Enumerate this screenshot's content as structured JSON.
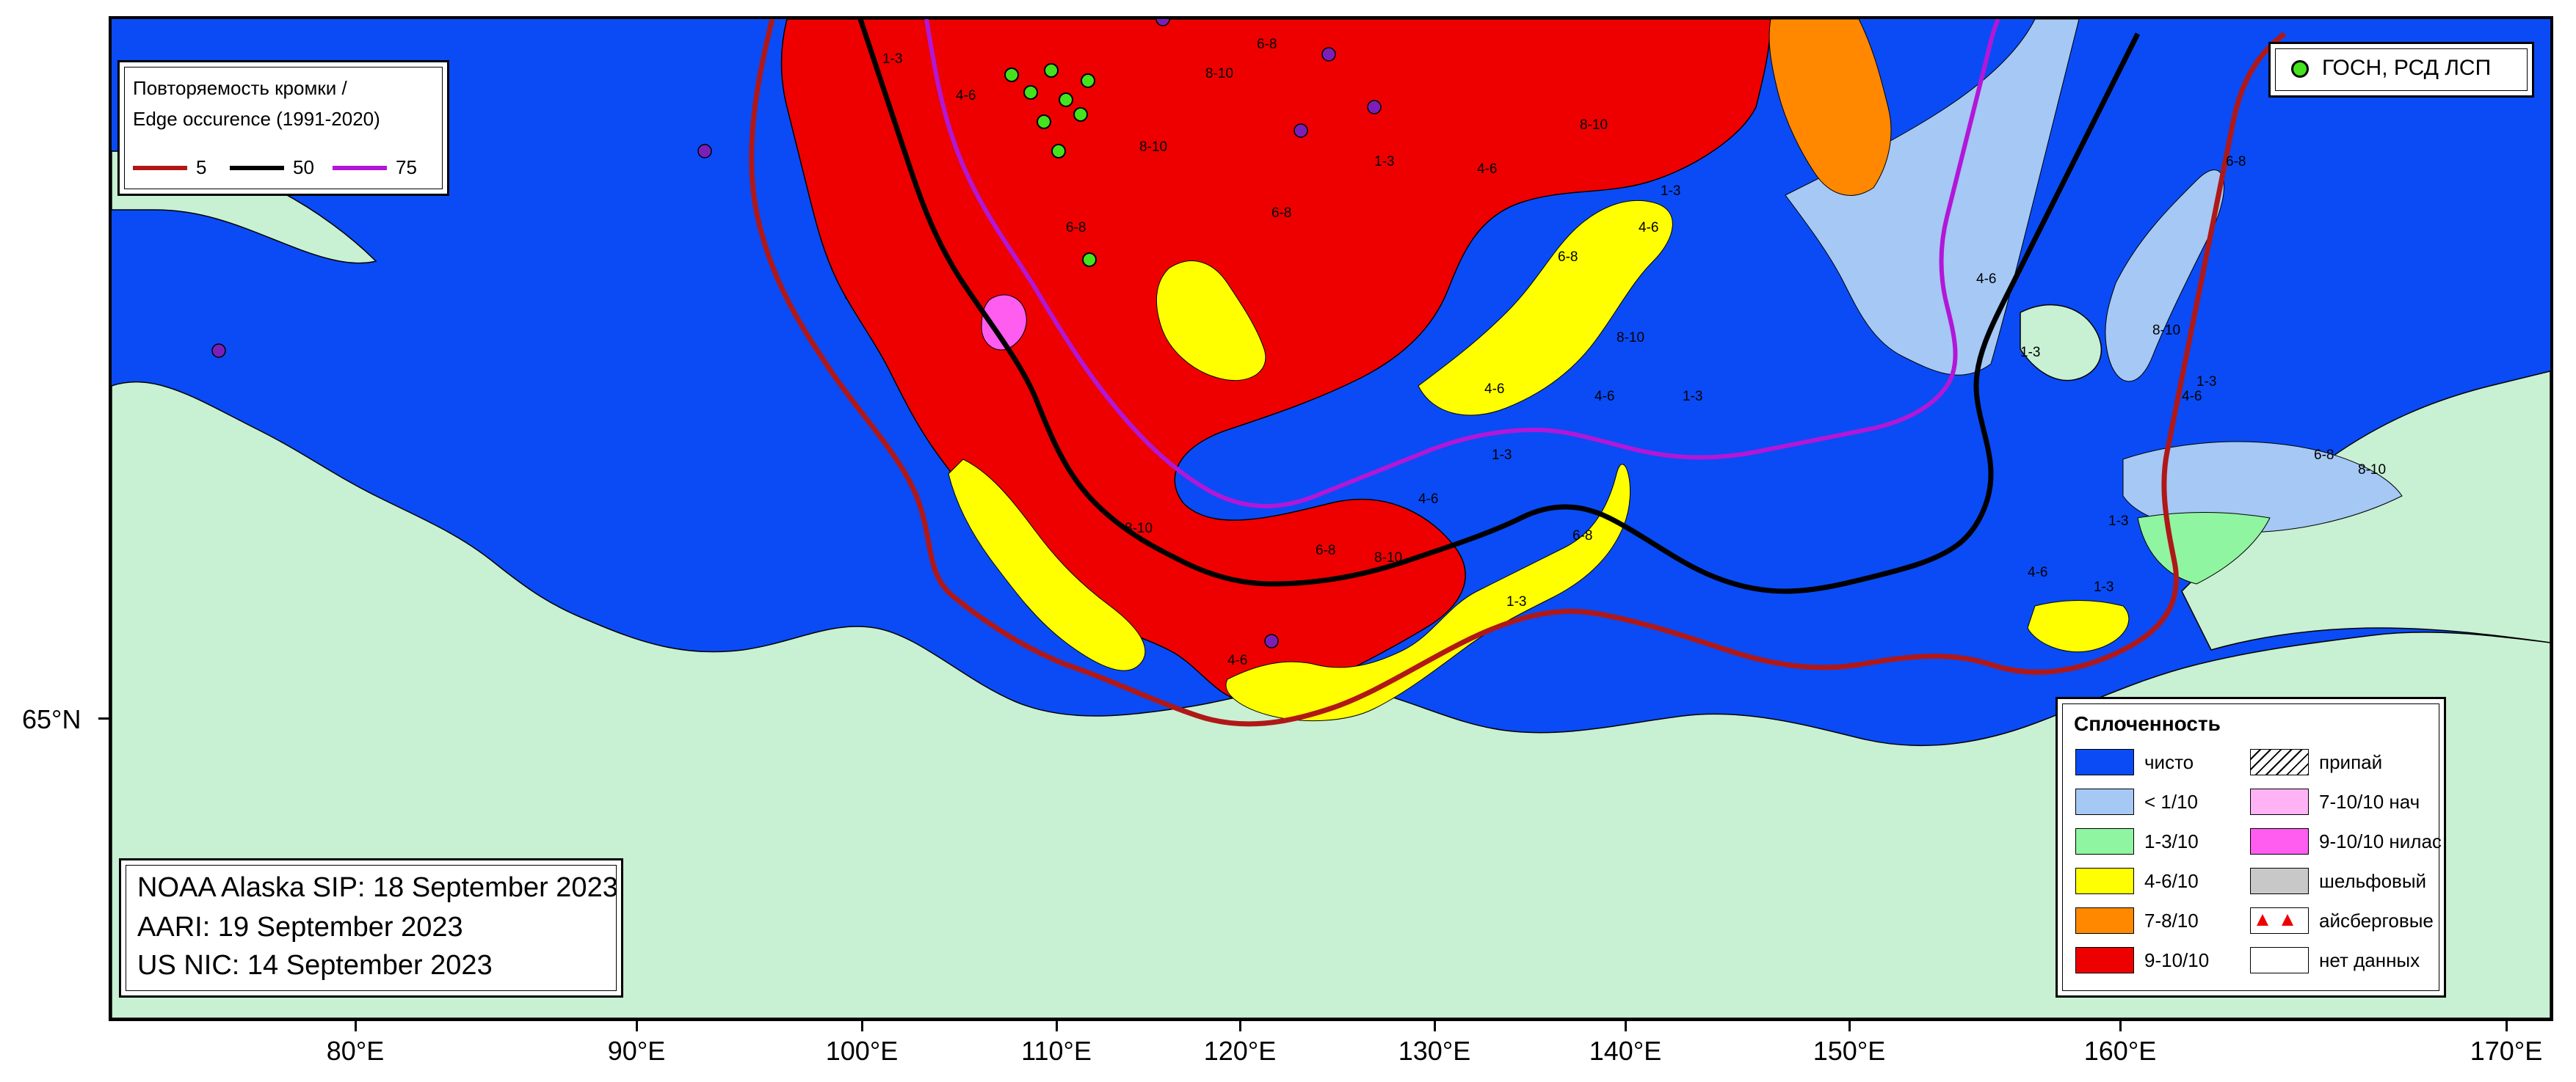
{
  "edge_legend": {
    "title_ru": "Повторяемость кромки /",
    "title_en": "Edge occurence (1991-2020)",
    "items": [
      {
        "label": "5",
        "color": "#b01818"
      },
      {
        "label": "50",
        "color": "#000000"
      },
      {
        "label": "75",
        "color": "#b217d8"
      }
    ]
  },
  "station_legend": {
    "label": "ГОСН, РСД ЛСП",
    "color": "#44e31e"
  },
  "concentration_legend": {
    "title": "Сплоченность",
    "left_items": [
      {
        "label": "чисто",
        "color": "#0a4bf5"
      },
      {
        "label": "< 1/10",
        "color": "#a5c8f5"
      },
      {
        "label": "1-3/10",
        "color": "#8ff5a0"
      },
      {
        "label": "4-6/10",
        "color": "#ffff00"
      },
      {
        "label": "7-8/10",
        "color": "#ff8800"
      },
      {
        "label": "9-10/10",
        "color": "#ee0000"
      }
    ],
    "right_items": [
      {
        "label": "припай",
        "swatch": "hatch"
      },
      {
        "label": "7-10/10 нач",
        "color": "#ffb3f5"
      },
      {
        "label": "9-10/10 нилас",
        "color": "#ff5cf0"
      },
      {
        "label": "шельфовый",
        "color": "#c8c8c8"
      },
      {
        "label": "айсберговые",
        "swatch": "triangles"
      },
      {
        "label": "нет данных",
        "color": "#ffffff"
      }
    ]
  },
  "sources": {
    "line1": "NOAA Alaska SIP: 18 September 2023",
    "line2": "AARI: 19 September 2023",
    "line3": "US NIC: 14 September 2023"
  },
  "axes": {
    "longitudes": [
      "80°E",
      "90°E",
      "100°E",
      "110°E",
      "120°E",
      "130°E",
      "140°E",
      "150°E",
      "160°E",
      "170°E"
    ],
    "latitude": "65°N"
  },
  "zone_labels": [
    "8-10",
    "6-8",
    "4-6",
    "1-3",
    "6-8",
    "8-10",
    "6-8",
    "1-3",
    "4-6",
    "8-10",
    "1-3",
    "4-6",
    "6-8",
    "8-10",
    "4-6",
    "1-3",
    "4-6",
    "1-3",
    "4-6",
    "6-8",
    "8-10",
    "1-3",
    "6-8",
    "4-6",
    "1-3",
    "8-10",
    "6-8",
    "1-3",
    "4-6",
    "1-3",
    "8-10",
    "6-8",
    "4-6",
    "1-3",
    "4-6",
    "8-10"
  ],
  "colors": {
    "water": "#0a4bf5",
    "land": "#c8f0d2",
    "very_open": "#a5c8f5",
    "open": "#8ff5a0",
    "medium": "#ffff00",
    "close": "#ff8800",
    "compact": "#ee0000",
    "nilas": "#ff5cf0",
    "edge5": "#b01818",
    "edge50": "#000000",
    "edge75": "#b217d8",
    "station": "#44e31e",
    "purple_marker": "#7a1fb8"
  }
}
